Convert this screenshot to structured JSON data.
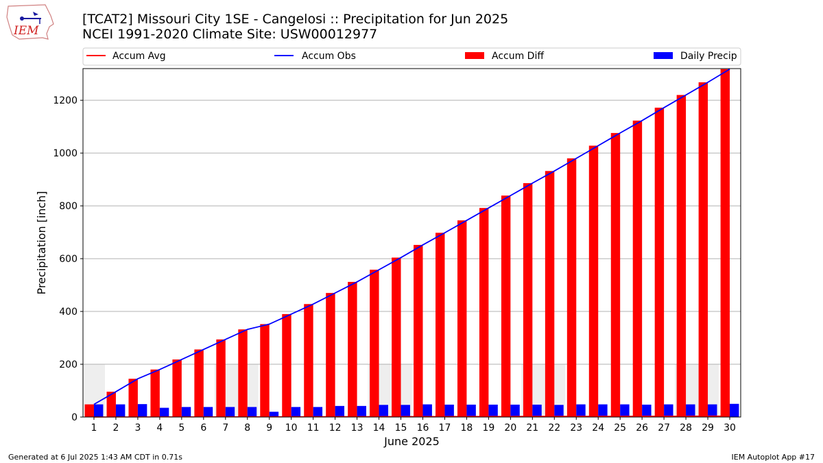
{
  "header": {
    "logo_text": "IEM",
    "title_line1": "[TCAT2] Missouri City 1SE - Cangelosi :: Precipitation for Jun 2025",
    "title_line2": "NCEI 1991-2020 Climate Site: USW00012977"
  },
  "footer": {
    "generated": "Generated at 6 Jul 2025 1:43 AM CDT in 0.71s",
    "app": "IEM Autoplot App #17"
  },
  "colors": {
    "accum_avg": "#ff0000",
    "accum_obs": "#0000ff",
    "accum_diff": "#ff0000",
    "daily_precip": "#0000ff",
    "weekend_shade": "#eeeeee",
    "grid": "#b0b0b0"
  },
  "chart_data": {
    "type": "bar",
    "xlabel": "June 2025",
    "ylabel": "Precipitation [inch]",
    "xlim": [
      0.5,
      30.5
    ],
    "ylim": [
      0,
      1320
    ],
    "yticks": [
      0,
      200,
      400,
      600,
      800,
      1000,
      1200
    ],
    "grid": "y",
    "legend_position": "top",
    "categories": [
      1,
      2,
      3,
      4,
      5,
      6,
      7,
      8,
      9,
      10,
      11,
      12,
      13,
      14,
      15,
      16,
      17,
      18,
      19,
      20,
      21,
      22,
      23,
      24,
      25,
      26,
      27,
      28,
      29,
      30
    ],
    "weekend_shaded_days": [
      [
        1,
        1
      ],
      [
        7,
        8
      ],
      [
        14,
        15
      ],
      [
        21,
        22
      ],
      [
        28,
        29
      ]
    ],
    "series": [
      {
        "name": "Accum Avg",
        "kind": "line",
        "values": [
          0.1,
          0.3,
          0.4,
          0.5,
          0.6,
          0.7,
          0.9,
          1,
          1.1,
          1.2,
          1.3,
          1.5,
          1.6,
          1.7,
          1.8,
          1.9,
          2.1,
          2.2,
          2.3,
          2.4,
          2.5,
          2.7,
          2.8,
          2.9,
          3,
          3.1,
          3.3,
          3.4,
          3.5,
          3.6
        ]
      },
      {
        "name": "Accum Obs",
        "kind": "line",
        "values": [
          48,
          96,
          145,
          180,
          218,
          256,
          294,
          332,
          352,
          390,
          428,
          470,
          512,
          558,
          604,
          652,
          698,
          745,
          792,
          839,
          886,
          932,
          980,
          1028,
          1076,
          1123,
          1172,
          1220,
          1268,
          1318
        ]
      },
      {
        "name": "Accum Diff",
        "kind": "bar",
        "values": [
          48,
          96,
          145,
          180,
          218,
          256,
          294,
          332,
          352,
          390,
          428,
          470,
          512,
          558,
          604,
          652,
          698,
          745,
          792,
          839,
          886,
          932,
          980,
          1028,
          1076,
          1123,
          1172,
          1220,
          1268,
          1318
        ]
      },
      {
        "name": "Daily Precip",
        "kind": "bar",
        "values": [
          48,
          48,
          49,
          35,
          38,
          38,
          38,
          38,
          20,
          38,
          38,
          42,
          42,
          46,
          46,
          48,
          47,
          47,
          47,
          47,
          47,
          46,
          48,
          48,
          48,
          47,
          48,
          48,
          48,
          50
        ]
      }
    ]
  }
}
